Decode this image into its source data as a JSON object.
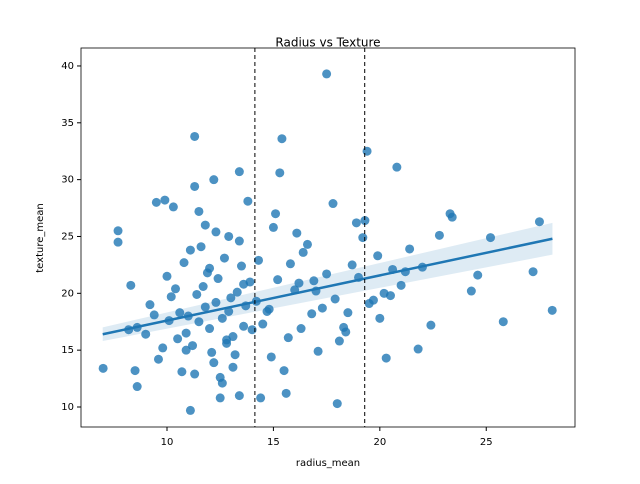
{
  "chart_data": {
    "type": "scatter",
    "title": "Radius vs Texture",
    "x_label": "radius_mean",
    "y_label": "texture_mean",
    "xlim": [
      5.96,
      29.17
    ],
    "ylim": [
      8.24,
      41.58
    ],
    "xticks": [
      10,
      15,
      20,
      25
    ],
    "yticks": [
      10,
      15,
      20,
      25,
      30,
      35,
      40
    ],
    "color": "#1f77b4",
    "x": [
      17.5,
      11.3,
      15.4,
      19.4,
      20.8,
      13.4,
      15.3,
      28.1,
      27.2,
      27.5,
      25.2,
      25.8,
      24.3,
      24.6,
      23.3,
      23.4,
      22.4,
      21.8,
      20.3,
      18.0,
      11.1,
      7.0,
      7.7,
      7.7,
      14.4,
      15.6,
      13.4,
      12.5,
      9.5,
      9.9,
      10.3,
      11.3,
      12.2,
      13.8,
      8.3,
      8.2,
      8.6,
      8.6,
      8.5,
      19.2,
      11.0,
      11.5,
      11.8,
      12.0,
      12.3,
      12.6,
      12.9,
      13.1,
      13.3,
      13.6,
      11.2,
      11.7,
      12.1,
      12.4,
      12.8,
      13.0,
      13.5,
      10.6,
      10.9,
      11.4,
      11.9,
      12.2,
      12.7,
      13.2,
      13.7,
      14.0,
      10.4,
      10.8,
      11.6,
      12.5,
      12.9,
      13.9,
      9.8,
      10.1,
      10.7,
      11.1,
      11.8,
      12.6,
      13.4,
      14.2,
      9.2,
      9.6,
      10.0,
      10.5,
      11.3,
      12.0,
      12.8,
      13.6,
      14.5,
      9.0,
      9.4,
      10.2,
      10.9,
      11.5,
      12.3,
      13.1,
      14.3,
      14.8,
      15.2,
      15.7,
      16.0,
      16.4,
      16.8,
      17.1,
      17.5,
      17.9,
      18.3,
      18.7,
      15.0,
      15.5,
      16.2,
      16.6,
      17.3,
      17.8,
      18.4,
      19.0,
      19.5,
      19.9,
      20.2,
      20.6,
      21.0,
      21.4,
      20.0,
      19.7,
      18.9,
      18.1,
      16.9,
      16.3,
      15.8,
      15.1,
      14.7,
      14.9,
      16.1,
      17.0,
      18.5,
      19.3,
      20.5,
      21.2,
      22.0,
      22.8
    ],
    "y": [
      39.3,
      33.8,
      33.6,
      32.5,
      31.1,
      30.7,
      30.6,
      18.5,
      21.9,
      26.3,
      24.9,
      17.5,
      20.2,
      21.6,
      27.0,
      26.7,
      17.2,
      15.1,
      14.3,
      10.3,
      9.7,
      13.4,
      25.5,
      24.5,
      10.8,
      11.2,
      11.0,
      10.8,
      28.0,
      28.2,
      27.6,
      29.4,
      30.0,
      28.1,
      20.7,
      16.8,
      17.0,
      11.8,
      13.2,
      24.9,
      18.0,
      17.5,
      18.8,
      16.9,
      19.2,
      17.8,
      18.4,
      16.2,
      20.1,
      17.1,
      15.4,
      20.6,
      14.8,
      21.3,
      15.9,
      19.6,
      22.4,
      18.3,
      16.5,
      19.9,
      21.8,
      13.9,
      23.1,
      14.6,
      18.9,
      16.8,
      20.4,
      22.7,
      24.1,
      12.6,
      25.0,
      21.0,
      15.2,
      17.6,
      13.1,
      23.8,
      26.0,
      12.1,
      24.6,
      19.3,
      19.0,
      14.2,
      21.5,
      16.0,
      12.9,
      22.2,
      15.6,
      20.8,
      17.3,
      16.4,
      18.1,
      19.7,
      15.0,
      27.2,
      25.4,
      13.5,
      22.9,
      18.6,
      21.2,
      16.1,
      20.3,
      23.6,
      18.2,
      14.9,
      21.7,
      19.5,
      17.0,
      22.5,
      25.8,
      13.2,
      20.9,
      24.3,
      18.7,
      27.9,
      16.6,
      21.4,
      19.1,
      23.3,
      20.0,
      22.1,
      20.7,
      23.9,
      17.8,
      19.4,
      26.2,
      15.8,
      21.1,
      16.9,
      22.6,
      27.0,
      18.4,
      14.4,
      25.3,
      20.2,
      18.3,
      26.4,
      19.8,
      21.9,
      22.3,
      25.1
    ],
    "regression": {
      "x": [
        6.98,
        28.11
      ],
      "y": [
        16.4,
        24.8
      ],
      "lower": [
        15.8,
        23.4
      ],
      "upper": [
        17.0,
        26.2
      ],
      "color": "#1f77b4"
    },
    "vlines": [
      14.13,
      19.29
    ]
  }
}
